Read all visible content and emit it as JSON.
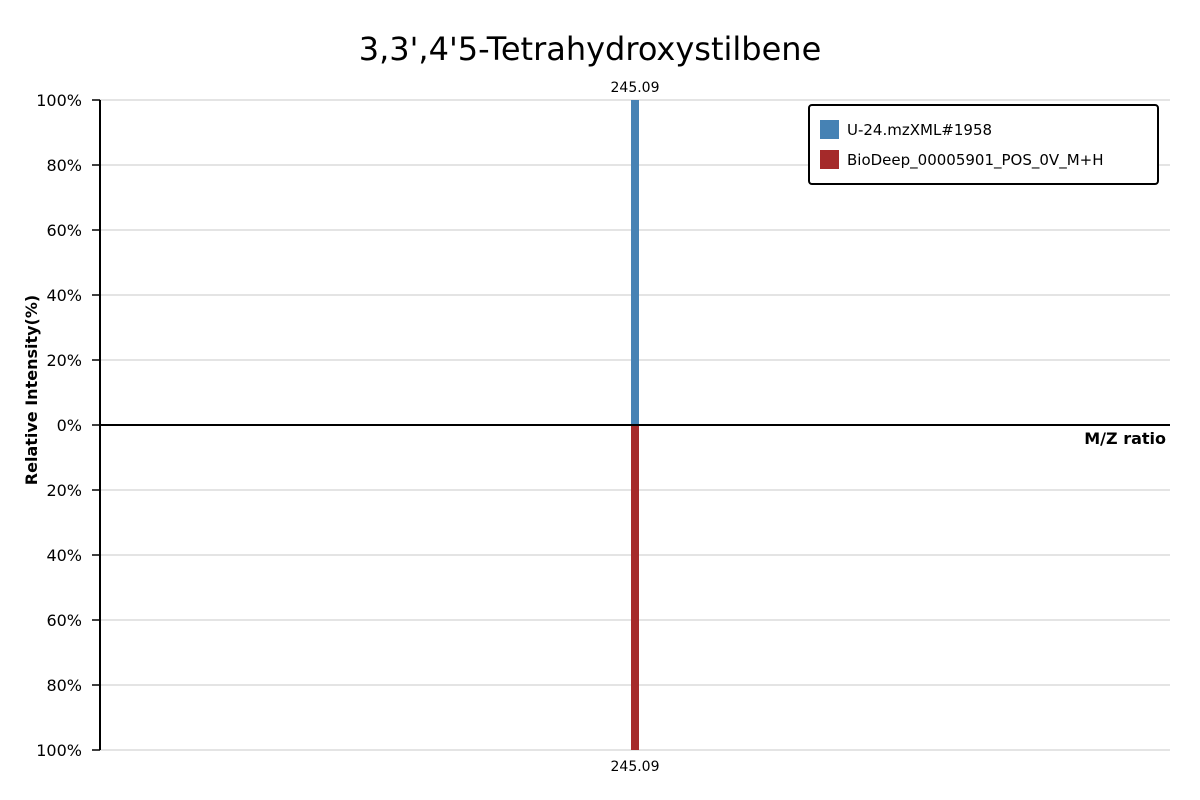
{
  "chart_data": {
    "type": "bar",
    "title": "3,3',4'5-Tetrahydroxystilbene",
    "xlabel": "M/Z ratio",
    "ylabel": "Relative Intensity(%)",
    "y_ticks_top": [
      "100%",
      "80%",
      "60%",
      "40%",
      "20%",
      "0%"
    ],
    "y_ticks_bottom": [
      "20%",
      "40%",
      "60%",
      "80%",
      "100%"
    ],
    "ylim": [
      -100,
      100
    ],
    "grid": true,
    "legend_position": "top-right",
    "series": [
      {
        "name": "U-24.mzXML#1958",
        "color": "#4682b4",
        "direction": "up",
        "peaks": [
          {
            "mz": 245.09,
            "intensity": 100,
            "label": "245.09"
          }
        ]
      },
      {
        "name": "BioDeep_00005901_POS_0V_M+H",
        "color": "#a52a2a",
        "direction": "down",
        "peaks": [
          {
            "mz": 245.09,
            "intensity": 100,
            "label": "245.09"
          }
        ]
      }
    ]
  }
}
